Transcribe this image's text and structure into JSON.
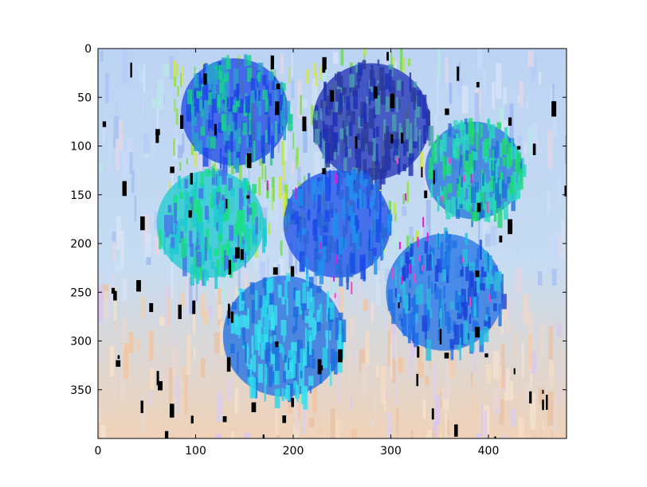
{
  "chart_data": {
    "type": "heatmap",
    "title": "",
    "xlabel": "",
    "ylabel": "",
    "image_width": 480,
    "image_height": 400,
    "xlim": [
      0,
      480
    ],
    "ylim": [
      400,
      0
    ],
    "x_ticks": [
      0,
      100,
      200,
      300,
      400
    ],
    "y_ticks": [
      0,
      50,
      100,
      150,
      200,
      250,
      300,
      350
    ],
    "grid": false,
    "background_color": "#bcd3f3",
    "lower_background_color": "#f0d2b8",
    "blobs": [
      {
        "name": "top-left",
        "cx": 140,
        "cy": 65,
        "r": 55,
        "colors": [
          "#1b45e6",
          "#2aa0d0",
          "#18d28e"
        ]
      },
      {
        "name": "top-center",
        "cx": 280,
        "cy": 75,
        "r": 60,
        "colors": [
          "#1e2fb4",
          "#2c3a9c",
          "#4ca0b0"
        ]
      },
      {
        "name": "right",
        "cx": 385,
        "cy": 125,
        "r": 50,
        "colors": [
          "#1f72d8",
          "#2ad8c0",
          "#1fd870"
        ]
      },
      {
        "name": "left-middle",
        "cx": 115,
        "cy": 180,
        "r": 55,
        "colors": [
          "#1ccad0",
          "#18e080",
          "#4870e8"
        ]
      },
      {
        "name": "center",
        "cx": 245,
        "cy": 180,
        "r": 55,
        "colors": [
          "#1a4ce8",
          "#2a66d8",
          "#1f90f0"
        ]
      },
      {
        "name": "lower-right",
        "cx": 355,
        "cy": 250,
        "r": 60,
        "colors": [
          "#1e70e6",
          "#2bbce0",
          "#1a44d8"
        ]
      },
      {
        "name": "bottom",
        "cx": 190,
        "cy": 295,
        "r": 62,
        "colors": [
          "#1a6ce0",
          "#28d4e8",
          "#3ae0f0"
        ]
      }
    ]
  }
}
